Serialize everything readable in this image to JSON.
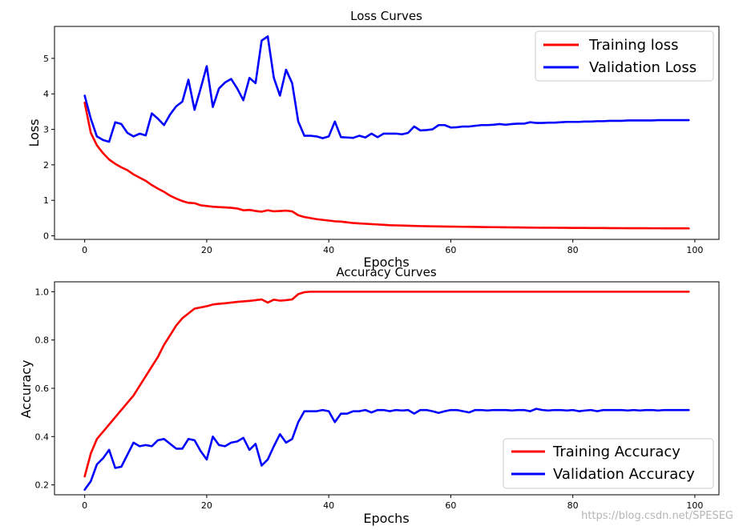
{
  "watermark": "https://blog.csdn.net/SPESEG",
  "chart_data": [
    {
      "type": "line",
      "title": "Loss Curves",
      "xlabel": "Epochs",
      "ylabel": "Loss",
      "xlim": [
        -4.95,
        103.95
      ],
      "ylim": [
        -0.1,
        5.9
      ],
      "xticks": [
        0,
        20,
        40,
        60,
        80,
        100
      ],
      "yticks": [
        0,
        1,
        2,
        3,
        4,
        5
      ],
      "grid": false,
      "legend_position": "top-right",
      "series": [
        {
          "name": "Training loss",
          "color": "#ff0000",
          "x_start": 0,
          "values": [
            3.75,
            2.9,
            2.55,
            2.33,
            2.15,
            2.03,
            1.93,
            1.85,
            1.73,
            1.64,
            1.55,
            1.43,
            1.33,
            1.24,
            1.13,
            1.05,
            0.98,
            0.93,
            0.92,
            0.86,
            0.84,
            0.82,
            0.81,
            0.8,
            0.79,
            0.77,
            0.72,
            0.73,
            0.7,
            0.68,
            0.72,
            0.69,
            0.7,
            0.71,
            0.69,
            0.58,
            0.53,
            0.5,
            0.47,
            0.45,
            0.43,
            0.41,
            0.4,
            0.38,
            0.36,
            0.35,
            0.34,
            0.33,
            0.32,
            0.31,
            0.3,
            0.295,
            0.29,
            0.285,
            0.28,
            0.275,
            0.27,
            0.268,
            0.265,
            0.262,
            0.26,
            0.258,
            0.255,
            0.253,
            0.25,
            0.248,
            0.246,
            0.244,
            0.242,
            0.24,
            0.238,
            0.236,
            0.234,
            0.232,
            0.23,
            0.229,
            0.228,
            0.227,
            0.226,
            0.225,
            0.224,
            0.223,
            0.222,
            0.221,
            0.22,
            0.219,
            0.218,
            0.217,
            0.216,
            0.215,
            0.215,
            0.214,
            0.214,
            0.213,
            0.213,
            0.212,
            0.212,
            0.211,
            0.211,
            0.21
          ]
        },
        {
          "name": "Validation Loss",
          "color": "#0000ff",
          "x_start": 0,
          "values": [
            3.95,
            3.3,
            2.8,
            2.7,
            2.65,
            3.2,
            3.15,
            2.9,
            2.8,
            2.88,
            2.83,
            3.45,
            3.3,
            3.12,
            3.42,
            3.65,
            3.78,
            4.4,
            3.55,
            4.15,
            4.78,
            3.63,
            4.15,
            4.32,
            4.42,
            4.15,
            3.82,
            4.45,
            4.3,
            5.5,
            5.62,
            4.45,
            3.95,
            4.68,
            4.3,
            3.22,
            2.82,
            2.82,
            2.8,
            2.75,
            2.8,
            3.22,
            2.78,
            2.77,
            2.76,
            2.82,
            2.77,
            2.88,
            2.78,
            2.88,
            2.88,
            2.88,
            2.86,
            2.9,
            3.08,
            2.97,
            2.98,
            3.0,
            3.12,
            3.12,
            3.05,
            3.06,
            3.08,
            3.08,
            3.1,
            3.12,
            3.12,
            3.13,
            3.15,
            3.13,
            3.15,
            3.16,
            3.16,
            3.2,
            3.18,
            3.18,
            3.19,
            3.19,
            3.2,
            3.21,
            3.21,
            3.21,
            3.22,
            3.22,
            3.23,
            3.23,
            3.24,
            3.24,
            3.24,
            3.25,
            3.25,
            3.25,
            3.25,
            3.25,
            3.26,
            3.26,
            3.26,
            3.26,
            3.26,
            3.26
          ]
        }
      ]
    },
    {
      "type": "line",
      "title": "Accuracy Curves",
      "xlabel": "Epochs",
      "ylabel": "Accuracy",
      "xlim": [
        -4.95,
        103.95
      ],
      "ylim": [
        0.159,
        1.041
      ],
      "xticks": [
        0,
        20,
        40,
        60,
        80,
        100
      ],
      "yticks": [
        0.2,
        0.4,
        0.6,
        0.8,
        1.0
      ],
      "ytick_labels": [
        "0.2",
        "0.4",
        "0.6",
        "0.8",
        "1.0"
      ],
      "grid": false,
      "legend_position": "bottom-right",
      "series": [
        {
          "name": "Training Accuracy",
          "color": "#ff0000",
          "x_start": 0,
          "values": [
            0.235,
            0.33,
            0.39,
            0.42,
            0.45,
            0.48,
            0.51,
            0.54,
            0.57,
            0.61,
            0.65,
            0.69,
            0.73,
            0.78,
            0.82,
            0.86,
            0.89,
            0.91,
            0.93,
            0.935,
            0.94,
            0.947,
            0.95,
            0.952,
            0.955,
            0.958,
            0.96,
            0.962,
            0.965,
            0.968,
            0.955,
            0.967,
            0.963,
            0.965,
            0.968,
            0.99,
            0.998,
            1,
            1,
            1,
            1,
            1,
            1,
            1,
            1,
            1,
            1,
            1,
            1,
            1,
            1,
            1,
            1,
            1,
            1,
            1,
            1,
            1,
            1,
            1,
            1,
            1,
            1,
            1,
            1,
            1,
            1,
            1,
            1,
            1,
            1,
            1,
            1,
            1,
            1,
            1,
            1,
            1,
            1,
            1,
            1,
            1,
            1,
            1,
            1,
            1,
            1,
            1,
            1,
            1,
            1,
            1,
            1,
            1,
            1,
            1,
            1,
            1,
            1,
            1
          ]
        },
        {
          "name": "Validation Accuracy",
          "color": "#0000ff",
          "x_start": 0,
          "values": [
            0.18,
            0.215,
            0.285,
            0.31,
            0.345,
            0.27,
            0.275,
            0.325,
            0.375,
            0.36,
            0.365,
            0.36,
            0.385,
            0.39,
            0.37,
            0.35,
            0.35,
            0.39,
            0.385,
            0.34,
            0.305,
            0.4,
            0.365,
            0.36,
            0.375,
            0.38,
            0.395,
            0.345,
            0.37,
            0.28,
            0.305,
            0.36,
            0.41,
            0.375,
            0.39,
            0.46,
            0.505,
            0.505,
            0.505,
            0.51,
            0.505,
            0.46,
            0.495,
            0.495,
            0.505,
            0.505,
            0.51,
            0.5,
            0.51,
            0.51,
            0.505,
            0.51,
            0.508,
            0.51,
            0.495,
            0.51,
            0.51,
            0.505,
            0.498,
            0.505,
            0.51,
            0.51,
            0.505,
            0.5,
            0.51,
            0.51,
            0.508,
            0.51,
            0.51,
            0.51,
            0.508,
            0.51,
            0.51,
            0.505,
            0.515,
            0.51,
            0.508,
            0.51,
            0.51,
            0.508,
            0.51,
            0.505,
            0.508,
            0.51,
            0.505,
            0.51,
            0.51,
            0.51,
            0.51,
            0.508,
            0.51,
            0.508,
            0.51,
            0.51,
            0.508,
            0.51,
            0.51,
            0.51,
            0.51,
            0.51
          ]
        }
      ]
    }
  ]
}
